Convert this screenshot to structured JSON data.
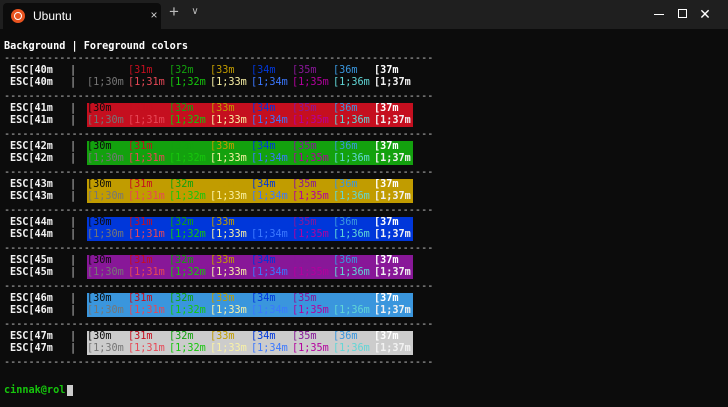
{
  "window": {
    "tab_title": "Ubuntu",
    "tab_close": "×",
    "new_tab": "+",
    "tab_dropdown": "∨",
    "close": "✕",
    "icons": {
      "tab": "ubuntu-logo-icon"
    }
  },
  "terminal": {
    "header": "Background | Foreground colors",
    "separator": "----------------------------------------------------------------------",
    "pipe": "|",
    "blocks": [
      {
        "row1": "ESC[40m",
        "row2": "ESC[40m",
        "bg": "#0c0c0c"
      },
      {
        "row1": "ESC[41m",
        "row2": "ESC[41m",
        "bg": "#c50f1f"
      },
      {
        "row1": "ESC[42m",
        "row2": "ESC[42m",
        "bg": "#13a10e"
      },
      {
        "row1": "ESC[43m",
        "row2": "ESC[43m",
        "bg": "#c19c00"
      },
      {
        "row1": "ESC[44m",
        "row2": "ESC[44m",
        "bg": "#0037da"
      },
      {
        "row1": "ESC[45m",
        "row2": "ESC[45m",
        "bg": "#881798"
      },
      {
        "row1": "ESC[46m",
        "row2": "ESC[46m",
        "bg": "#3a96dd"
      },
      {
        "row1": "ESC[47m",
        "row2": "ESC[47m",
        "bg": "#cccccc"
      }
    ],
    "fg_labels": [
      "[30m",
      "[31m",
      "[32m",
      "[33m",
      "[34m",
      "[35m",
      "[36m",
      "[37m"
    ],
    "fg_bold_labels": [
      "[1;30m",
      "[1;31m",
      "[1;32m",
      "[1;33m",
      "[1;34m",
      "[1;35m",
      "[1;36m",
      "[1;37m"
    ],
    "fg_colors": [
      "#0c0c0c",
      "#c50f1f",
      "#13a10e",
      "#c19c00",
      "#0037da",
      "#881798",
      "#3a96dd",
      "#ffffff"
    ],
    "fg_bold_colors": [
      "#767676",
      "#e74856",
      "#16c60c",
      "#f9f1a5",
      "#3b78ff",
      "#b4009e",
      "#61d6d6",
      "#f2f2f2"
    ],
    "prompt": "cinnak@rol"
  }
}
